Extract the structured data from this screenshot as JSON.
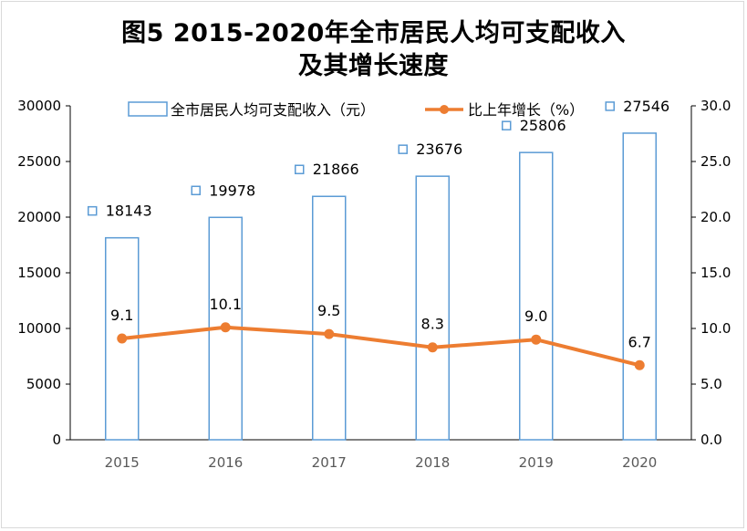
{
  "chart_data": {
    "type": "bar+line",
    "title_line1": "图5    2015-2020年全市居民人均可支配收入",
    "title_line2": "及其增长速度",
    "categories": [
      "2015",
      "2016",
      "2017",
      "2018",
      "2019",
      "2020"
    ],
    "series": [
      {
        "name": "全市居民人均可支配收入（元）",
        "type": "bar",
        "axis": "left",
        "values": [
          18143,
          19978,
          21866,
          23676,
          25806,
          27546
        ],
        "color": "#5b9bd5"
      },
      {
        "name": "比上年增长（%）",
        "type": "line",
        "axis": "right",
        "values": [
          9.1,
          10.1,
          9.5,
          8.3,
          9.0,
          6.7
        ],
        "labels": [
          "9.1",
          "10.1",
          "9.5",
          "8.3",
          "9.0",
          "6.7"
        ],
        "color": "#ed7d31"
      }
    ],
    "y_left": {
      "min": 0,
      "max": 30000,
      "step": 5000,
      "ticks": [
        "0",
        "5000",
        "10000",
        "15000",
        "20000",
        "25000",
        "30000"
      ]
    },
    "y_right": {
      "min": 0,
      "max": 30,
      "step": 5,
      "ticks": [
        "0.0",
        "5.0",
        "10.0",
        "15.0",
        "20.0",
        "25.0",
        "30.0"
      ]
    },
    "legend_position": "top",
    "grid": false
  }
}
